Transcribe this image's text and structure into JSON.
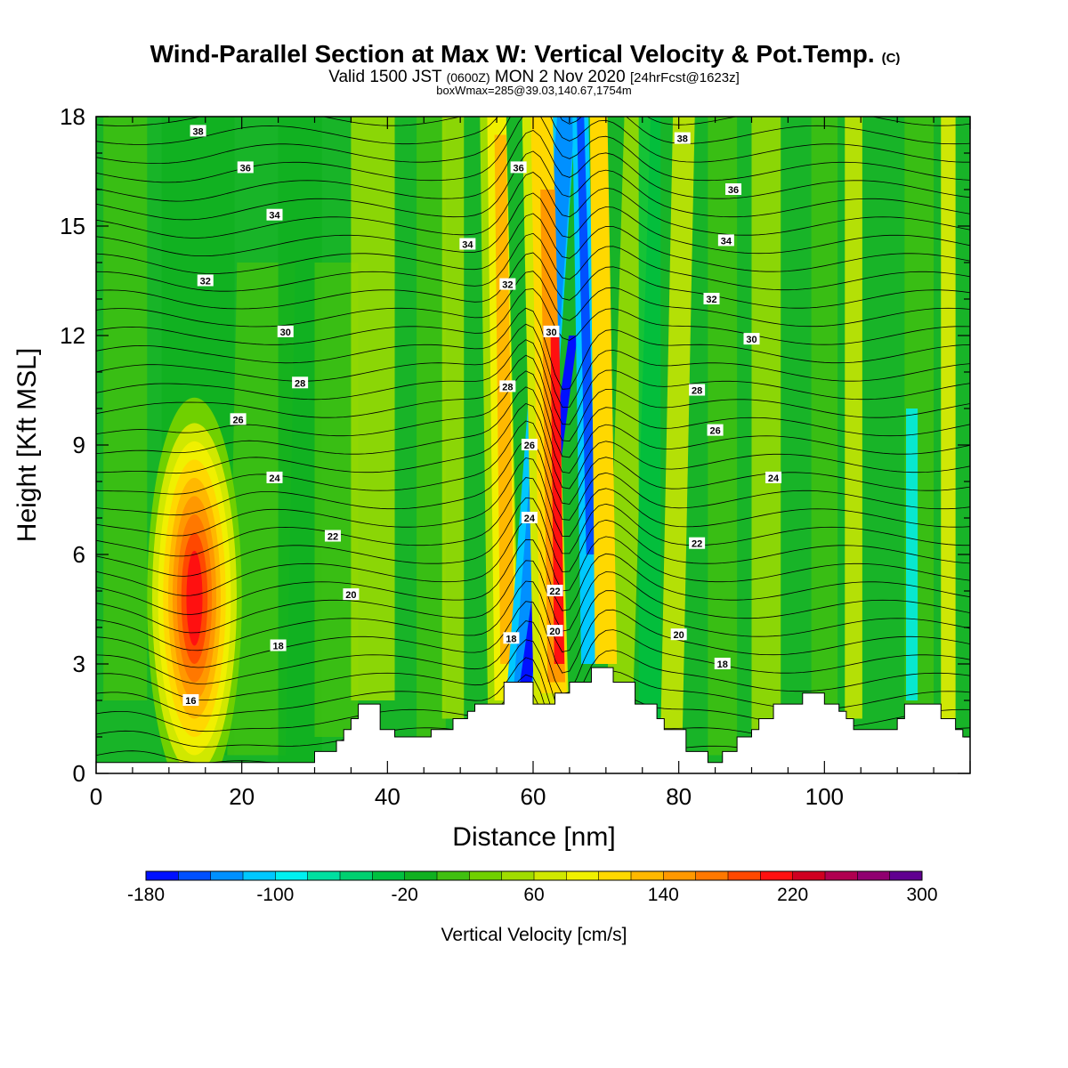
{
  "header": {
    "title": "Wind-Parallel Section at Max W: Vertical Velocity & Pot.Temp.",
    "title_units": "(C)",
    "valid_prefix": "Valid 1500 JST",
    "valid_zulu": "(0600Z)",
    "valid_date": "MON 2 Nov 2020",
    "forecast": "[24hrFcst@1623z]",
    "box_info": "boxWmax=285@39.03,140.67,1754m"
  },
  "chart_data": {
    "type": "heatmap",
    "xlabel": "Distance [nm]",
    "ylabel": "Height [Kft MSL]",
    "xlim": [
      0,
      120
    ],
    "ylim": [
      0,
      18
    ],
    "x_ticks": [
      "0",
      "20",
      "40",
      "60",
      "80",
      "100"
    ],
    "y_ticks": [
      "0",
      "3",
      "6",
      "9",
      "12",
      "15",
      "18"
    ],
    "colorbar": {
      "title": "Vertical Velocity [cm/s]",
      "min": -180,
      "max": 300,
      "step": 20,
      "labels": [
        "-180",
        "-100",
        "-20",
        "60",
        "140",
        "220",
        "300"
      ],
      "colors": [
        "#0010ff",
        "#0050ff",
        "#0090ff",
        "#00c8ff",
        "#00f0f0",
        "#00e0a0",
        "#00d070",
        "#00c040",
        "#10b020",
        "#40c010",
        "#70d000",
        "#a0dc00",
        "#d0e800",
        "#f0f000",
        "#ffd800",
        "#ffb800",
        "#ff9800",
        "#ff7800",
        "#ff4800",
        "#ff1010",
        "#d00020",
        "#b00050",
        "#900070",
        "#600090"
      ]
    },
    "features": [
      {
        "name": "updraft-left",
        "x": 13,
        "y_center": 4.5,
        "peak_w": 190
      },
      {
        "name": "downdraft-center",
        "x": 59,
        "y_center": 5,
        "peak_w": -170
      },
      {
        "name": "updraft-center",
        "x": 63,
        "y_center": 7.5,
        "peak_w": 210
      }
    ],
    "theta_labels": [
      {
        "text": "38",
        "x": 14,
        "y": 17.6
      },
      {
        "text": "36",
        "x": 20.5,
        "y": 16.6
      },
      {
        "text": "34",
        "x": 24.5,
        "y": 15.3
      },
      {
        "text": "32",
        "x": 15,
        "y": 13.5
      },
      {
        "text": "30",
        "x": 26,
        "y": 12.1
      },
      {
        "text": "28",
        "x": 28,
        "y": 10.7
      },
      {
        "text": "26",
        "x": 19.5,
        "y": 9.7
      },
      {
        "text": "24",
        "x": 24.5,
        "y": 8.1
      },
      {
        "text": "22",
        "x": 32.5,
        "y": 6.5
      },
      {
        "text": "20",
        "x": 35,
        "y": 4.9
      },
      {
        "text": "18",
        "x": 25,
        "y": 3.5
      },
      {
        "text": "16",
        "x": 13,
        "y": 2.0
      },
      {
        "text": "34",
        "x": 51,
        "y": 14.5
      },
      {
        "text": "36",
        "x": 58,
        "y": 16.6
      },
      {
        "text": "32",
        "x": 56.5,
        "y": 13.4
      },
      {
        "text": "30",
        "x": 62.5,
        "y": 12.1
      },
      {
        "text": "28",
        "x": 56.5,
        "y": 10.6
      },
      {
        "text": "26",
        "x": 59.5,
        "y": 9.0
      },
      {
        "text": "24",
        "x": 59.5,
        "y": 7.0
      },
      {
        "text": "22",
        "x": 63,
        "y": 5.0
      },
      {
        "text": "20",
        "x": 63,
        "y": 3.9
      },
      {
        "text": "18",
        "x": 57,
        "y": 3.7
      },
      {
        "text": "38",
        "x": 80.5,
        "y": 17.4
      },
      {
        "text": "36",
        "x": 87.5,
        "y": 16.0
      },
      {
        "text": "34",
        "x": 86.5,
        "y": 14.6
      },
      {
        "text": "32",
        "x": 84.5,
        "y": 13.0
      },
      {
        "text": "30",
        "x": 90,
        "y": 11.9
      },
      {
        "text": "28",
        "x": 82.5,
        "y": 10.5
      },
      {
        "text": "26",
        "x": 85,
        "y": 9.4
      },
      {
        "text": "24",
        "x": 93,
        "y": 8.1
      },
      {
        "text": "22",
        "x": 82.5,
        "y": 6.3
      },
      {
        "text": "20",
        "x": 80,
        "y": 3.8
      },
      {
        "text": "18",
        "x": 86,
        "y": 3.0
      }
    ],
    "terrain_kft": [
      [
        0,
        0.3
      ],
      [
        4,
        0.3
      ],
      [
        5,
        0.3
      ],
      [
        9,
        0.3
      ],
      [
        10,
        0.3
      ],
      [
        29,
        0.3
      ],
      [
        30,
        0.6
      ],
      [
        31,
        0.6
      ],
      [
        32,
        0.6
      ],
      [
        33,
        0.9
      ],
      [
        34,
        1.2
      ],
      [
        35,
        1.5
      ],
      [
        36,
        1.9
      ],
      [
        38,
        1.9
      ],
      [
        39,
        1.2
      ],
      [
        40,
        1.2
      ],
      [
        41,
        1.0
      ],
      [
        43,
        1.0
      ],
      [
        44,
        1.0
      ],
      [
        45,
        1.0
      ],
      [
        46,
        1.2
      ],
      [
        47,
        1.2
      ],
      [
        48,
        1.2
      ],
      [
        49,
        1.5
      ],
      [
        50,
        1.5
      ],
      [
        51,
        1.7
      ],
      [
        52,
        1.9
      ],
      [
        55,
        1.9
      ],
      [
        56,
        2.5
      ],
      [
        57,
        2.5
      ],
      [
        58,
        2.5
      ],
      [
        59,
        2.5
      ],
      [
        60,
        1.9
      ],
      [
        62,
        1.9
      ],
      [
        63,
        2.2
      ],
      [
        64,
        2.2
      ],
      [
        65,
        2.5
      ],
      [
        66,
        2.5
      ],
      [
        67,
        2.5
      ],
      [
        68,
        2.9
      ],
      [
        70,
        2.9
      ],
      [
        71,
        2.5
      ],
      [
        73,
        2.5
      ],
      [
        74,
        1.9
      ],
      [
        76,
        1.9
      ],
      [
        77,
        1.5
      ],
      [
        78,
        1.2
      ],
      [
        80,
        1.2
      ],
      [
        81,
        0.6
      ],
      [
        82,
        0.6
      ],
      [
        83,
        0.6
      ],
      [
        84,
        0.3
      ],
      [
        85,
        0.3
      ],
      [
        86,
        0.6
      ],
      [
        87,
        0.6
      ],
      [
        88,
        1.0
      ],
      [
        89,
        1.0
      ],
      [
        90,
        1.2
      ],
      [
        91,
        1.5
      ],
      [
        92,
        1.5
      ],
      [
        93,
        1.9
      ],
      [
        94,
        1.9
      ],
      [
        95,
        1.9
      ],
      [
        97,
        2.2
      ],
      [
        99,
        2.2
      ],
      [
        100,
        1.9
      ],
      [
        101,
        1.9
      ],
      [
        102,
        1.7
      ],
      [
        103,
        1.5
      ],
      [
        104,
        1.2
      ],
      [
        105,
        1.2
      ],
      [
        109,
        1.2
      ],
      [
        110,
        1.5
      ],
      [
        111,
        1.9
      ],
      [
        115,
        1.9
      ],
      [
        116,
        1.5
      ],
      [
        117,
        1.5
      ],
      [
        118,
        1.2
      ],
      [
        119,
        1.0
      ],
      [
        120,
        1.0
      ]
    ]
  }
}
